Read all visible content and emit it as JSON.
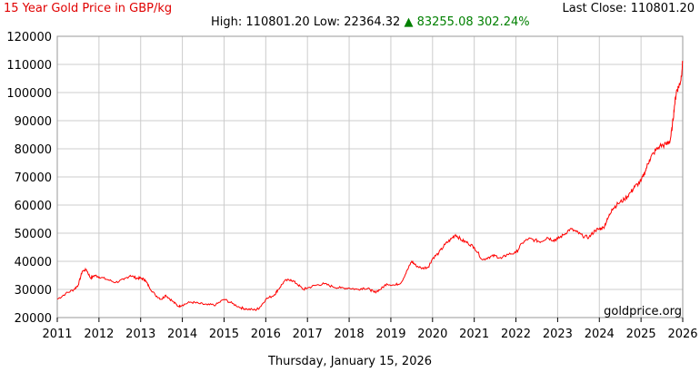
{
  "header": {
    "title": "15 Year Gold Price in GBP/kg",
    "last_close_label": "Last Close:",
    "last_close_value": "110801.20",
    "high_label": "High:",
    "high_value": "110801.20",
    "low_label": "Low:",
    "low_value": "22364.32",
    "change_arrow": "▲",
    "change_value": "83255.08",
    "change_percent": "302.24%"
  },
  "footer": {
    "date": "Thursday, January 15, 2026",
    "watermark": "goldprice.org"
  },
  "colors": {
    "line": "#ff0000",
    "title": "#e00000",
    "up": "#008000",
    "grid": "#cccccc"
  },
  "chart_data": {
    "type": "line",
    "title": "15 Year Gold Price in GBP/kg",
    "xlabel": "",
    "ylabel": "",
    "xlim": [
      2011,
      2026
    ],
    "ylim": [
      20000,
      120000
    ],
    "grid": true,
    "x_ticks": [
      "2011",
      "2012",
      "2013",
      "2014",
      "2015",
      "2016",
      "2017",
      "2018",
      "2019",
      "2020",
      "2021",
      "2022",
      "2023",
      "2024",
      "2025",
      "2026"
    ],
    "y_ticks": [
      "20000",
      "30000",
      "40000",
      "50000",
      "60000",
      "70000",
      "80000",
      "90000",
      "100000",
      "110000",
      "120000"
    ],
    "series": [
      {
        "points": [
          [
            2011.0,
            26500
          ],
          [
            2011.2,
            28500
          ],
          [
            2011.4,
            30000
          ],
          [
            2011.5,
            31500
          ],
          [
            2011.6,
            36500
          ],
          [
            2011.7,
            37000
          ],
          [
            2011.8,
            34000
          ],
          [
            2011.9,
            35000
          ],
          [
            2012.0,
            34500
          ],
          [
            2012.2,
            33500
          ],
          [
            2012.4,
            32500
          ],
          [
            2012.6,
            33500
          ],
          [
            2012.75,
            35000
          ],
          [
            2012.9,
            34000
          ],
          [
            2013.0,
            34000
          ],
          [
            2013.1,
            33500
          ],
          [
            2013.2,
            31000
          ],
          [
            2013.35,
            28000
          ],
          [
            2013.5,
            26500
          ],
          [
            2013.6,
            28000
          ],
          [
            2013.75,
            26000
          ],
          [
            2013.9,
            24000
          ],
          [
            2014.0,
            24500
          ],
          [
            2014.2,
            25500
          ],
          [
            2014.4,
            25000
          ],
          [
            2014.6,
            24500
          ],
          [
            2014.8,
            24500
          ],
          [
            2015.0,
            26500
          ],
          [
            2015.2,
            25000
          ],
          [
            2015.4,
            23500
          ],
          [
            2015.55,
            23000
          ],
          [
            2015.75,
            22700
          ],
          [
            2015.85,
            23500
          ],
          [
            2016.0,
            26500
          ],
          [
            2016.2,
            28000
          ],
          [
            2016.3,
            30000
          ],
          [
            2016.45,
            33000
          ],
          [
            2016.6,
            33500
          ],
          [
            2016.75,
            32000
          ],
          [
            2016.9,
            30000
          ],
          [
            2017.0,
            30500
          ],
          [
            2017.2,
            31500
          ],
          [
            2017.4,
            32000
          ],
          [
            2017.6,
            31000
          ],
          [
            2017.8,
            30500
          ],
          [
            2018.0,
            30500
          ],
          [
            2018.2,
            30000
          ],
          [
            2018.35,
            30500
          ],
          [
            2018.5,
            30000
          ],
          [
            2018.6,
            29000
          ],
          [
            2018.75,
            30000
          ],
          [
            2018.9,
            32000
          ],
          [
            2019.1,
            31500
          ],
          [
            2019.25,
            32500
          ],
          [
            2019.4,
            37000
          ],
          [
            2019.5,
            40000
          ],
          [
            2019.6,
            38500
          ],
          [
            2019.75,
            37500
          ],
          [
            2019.9,
            38000
          ],
          [
            2020.0,
            41000
          ],
          [
            2020.15,
            43000
          ],
          [
            2020.3,
            46000
          ],
          [
            2020.45,
            48000
          ],
          [
            2020.55,
            49500
          ],
          [
            2020.7,
            47500
          ],
          [
            2020.85,
            46500
          ],
          [
            2021.0,
            45000
          ],
          [
            2021.2,
            40500
          ],
          [
            2021.35,
            41500
          ],
          [
            2021.5,
            42000
          ],
          [
            2021.65,
            41000
          ],
          [
            2021.8,
            42500
          ],
          [
            2022.0,
            43000
          ],
          [
            2022.15,
            46500
          ],
          [
            2022.3,
            48000
          ],
          [
            2022.45,
            47500
          ],
          [
            2022.6,
            47000
          ],
          [
            2022.75,
            48500
          ],
          [
            2022.9,
            47500
          ],
          [
            2023.0,
            48000
          ],
          [
            2023.15,
            49500
          ],
          [
            2023.3,
            51500
          ],
          [
            2023.45,
            50500
          ],
          [
            2023.6,
            49000
          ],
          [
            2023.75,
            48500
          ],
          [
            2023.9,
            51000
          ],
          [
            2024.0,
            51500
          ],
          [
            2024.1,
            52000
          ],
          [
            2024.2,
            55000
          ],
          [
            2024.3,
            58500
          ],
          [
            2024.45,
            60500
          ],
          [
            2024.6,
            62000
          ],
          [
            2024.75,
            64500
          ],
          [
            2024.85,
            66500
          ],
          [
            2025.0,
            68500
          ],
          [
            2025.1,
            72000
          ],
          [
            2025.2,
            76000
          ],
          [
            2025.3,
            78500
          ],
          [
            2025.45,
            81000
          ],
          [
            2025.6,
            81500
          ],
          [
            2025.7,
            83000
          ],
          [
            2025.75,
            88000
          ],
          [
            2025.8,
            95000
          ],
          [
            2025.85,
            100500
          ],
          [
            2025.9,
            102000
          ],
          [
            2025.95,
            104000
          ],
          [
            2026.0,
            110801.2
          ]
        ]
      }
    ]
  }
}
